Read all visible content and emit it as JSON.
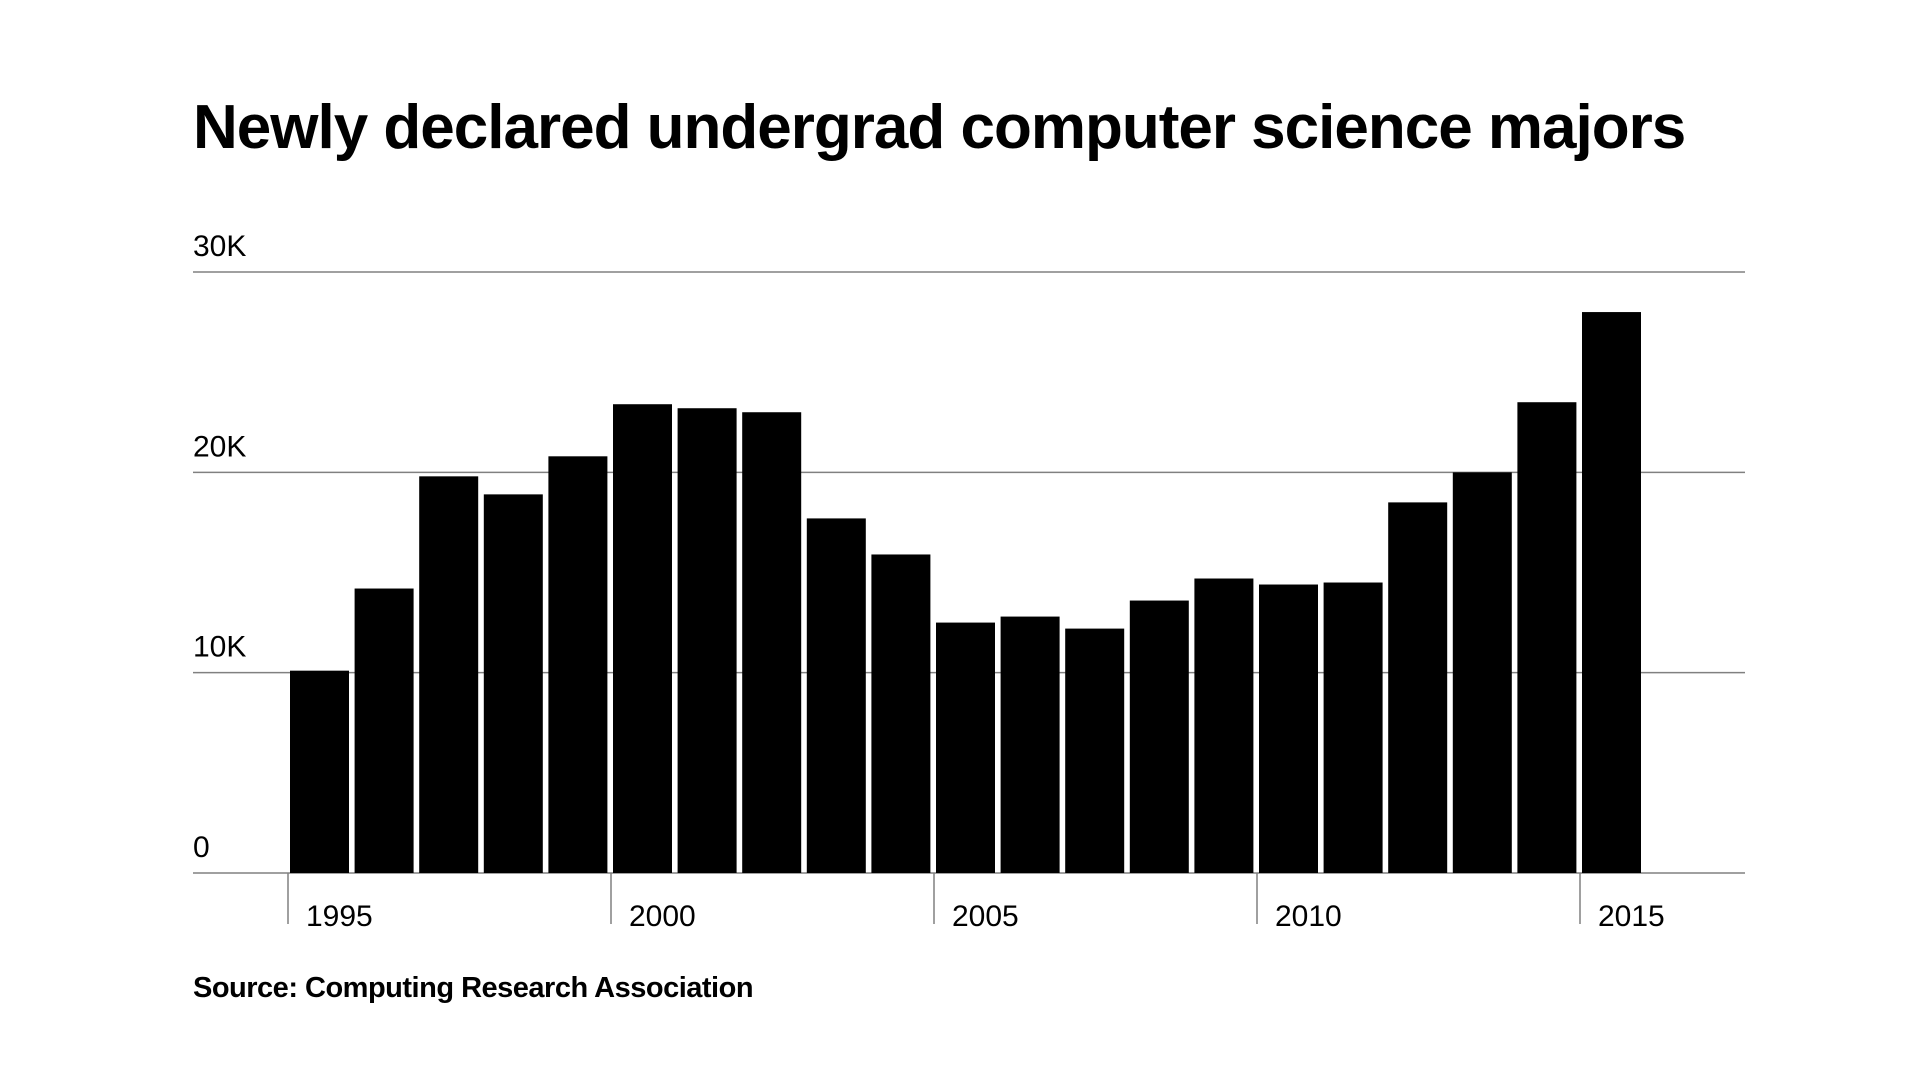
{
  "chart_data": {
    "type": "bar",
    "title": "Newly declared undergrad computer science majors",
    "source": "Source: Computing Research Association",
    "categories": [
      1995,
      1996,
      1997,
      1998,
      1999,
      2000,
      2001,
      2002,
      2003,
      2004,
      2005,
      2006,
      2007,
      2008,
      2009,
      2010,
      2011,
      2012,
      2013,
      2014,
      2015
    ],
    "values": [
      10100,
      14200,
      19800,
      18900,
      20800,
      23400,
      23200,
      23000,
      17700,
      15900,
      12500,
      12800,
      12200,
      13600,
      14700,
      14400,
      14500,
      18500,
      20000,
      23500,
      28000
    ],
    "ylim": [
      0,
      30000
    ],
    "y_ticks": [
      {
        "value": 0,
        "label": "0"
      },
      {
        "value": 10000,
        "label": "10K"
      },
      {
        "value": 20000,
        "label": "20K"
      },
      {
        "value": 30000,
        "label": "30K"
      }
    ],
    "x_ticks": [
      {
        "value": 1995,
        "label": "1995"
      },
      {
        "value": 2000,
        "label": "2000"
      },
      {
        "value": 2005,
        "label": "2005"
      },
      {
        "value": 2010,
        "label": "2010"
      },
      {
        "value": 2015,
        "label": "2015"
      }
    ],
    "grid": true,
    "bar_color": "#000000",
    "grid_color": "#808080"
  }
}
